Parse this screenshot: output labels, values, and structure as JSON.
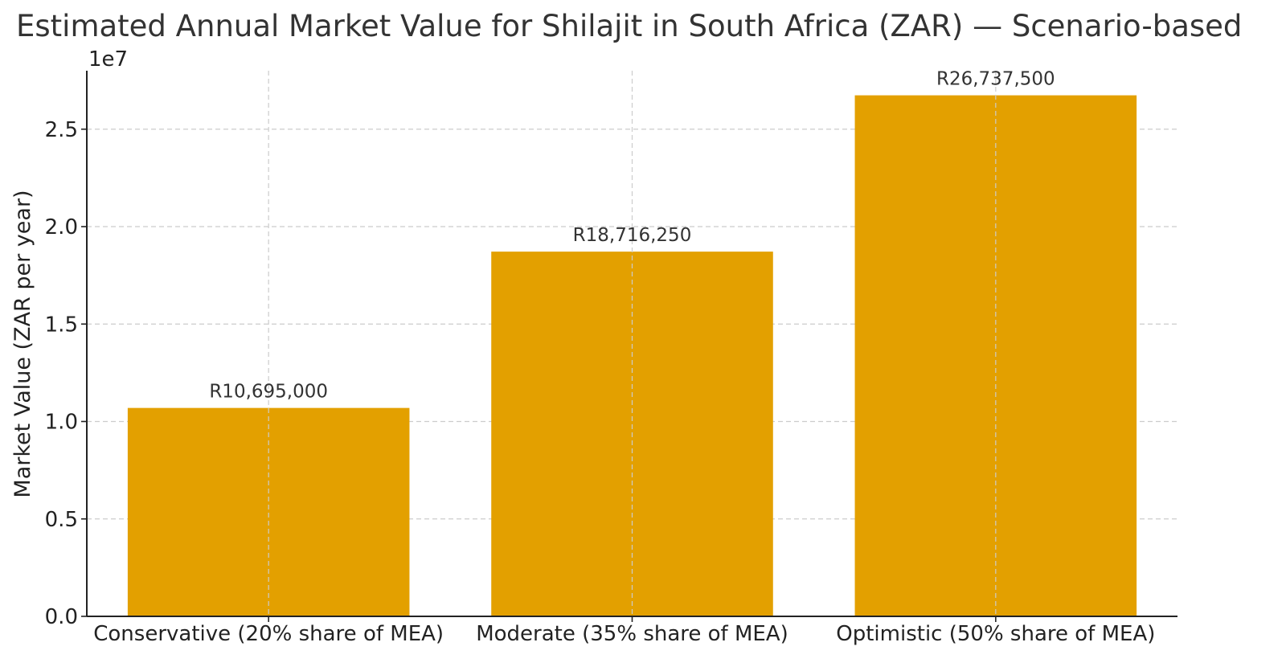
{
  "chart_data": {
    "type": "bar",
    "title": "Estimated Annual Market Value for Shilajit in South Africa (ZAR) — Scenario-based",
    "xlabel": "",
    "ylabel": "Market Value (ZAR per year)",
    "y_offset_label": "1e7",
    "categories": [
      "Conservative (20% share of MEA)",
      "Moderate (35% share of MEA)",
      "Optimistic (50% share of MEA)"
    ],
    "values": [
      10695000,
      18716250,
      26737500
    ],
    "data_labels": [
      "R10,695,000",
      "R18,716,250",
      "R26,737,500"
    ],
    "ylim": [
      0,
      28000000
    ],
    "yticks": [
      0,
      5000000,
      10000000,
      15000000,
      20000000,
      25000000
    ],
    "ytick_labels": [
      "0.0",
      "0.5",
      "1.0",
      "1.5",
      "2.0",
      "2.5"
    ],
    "grid": true,
    "bar_color": "#E3A000"
  }
}
